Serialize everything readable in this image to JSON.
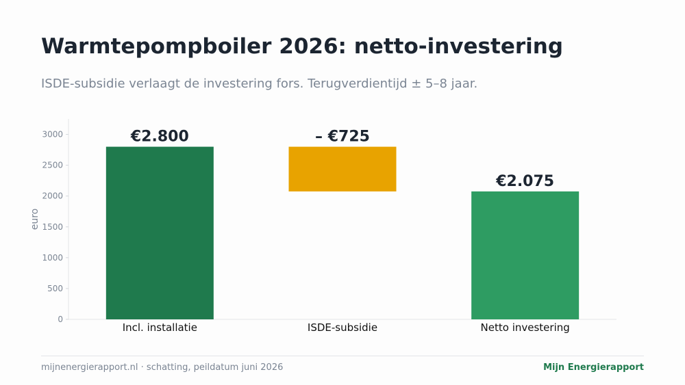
{
  "header": {
    "title": "Warmtepompboiler 2026: netto-investering",
    "subtitle": "ISDE-subsidie verlaagt de investering fors. Terugverdientijd ± 5–8 jaar."
  },
  "chart_data": {
    "type": "bar",
    "variant": "waterfall",
    "ylabel": "euro",
    "ylim": [
      0,
      3250
    ],
    "yticks": [
      0,
      500,
      1000,
      1500,
      2000,
      2500,
      3000
    ],
    "grid": false,
    "bars": [
      {
        "category": "Incl. installatie",
        "start": 0,
        "end": 2800,
        "label": "€2.800",
        "color": "#1f7a4d"
      },
      {
        "category": "ISDE-subsidie",
        "start": 2075,
        "end": 2800,
        "label": "– €725",
        "color": "#e8a300"
      },
      {
        "category": "Netto investering",
        "start": 0,
        "end": 2075,
        "label": "€2.075",
        "color": "#2e9c62"
      }
    ]
  },
  "footer": {
    "source": "mijnenergierapport.nl  ·  schatting, peildatum juni 2026",
    "brand": "Mijn Energierapport",
    "brand_color": "#1f7a4d"
  }
}
